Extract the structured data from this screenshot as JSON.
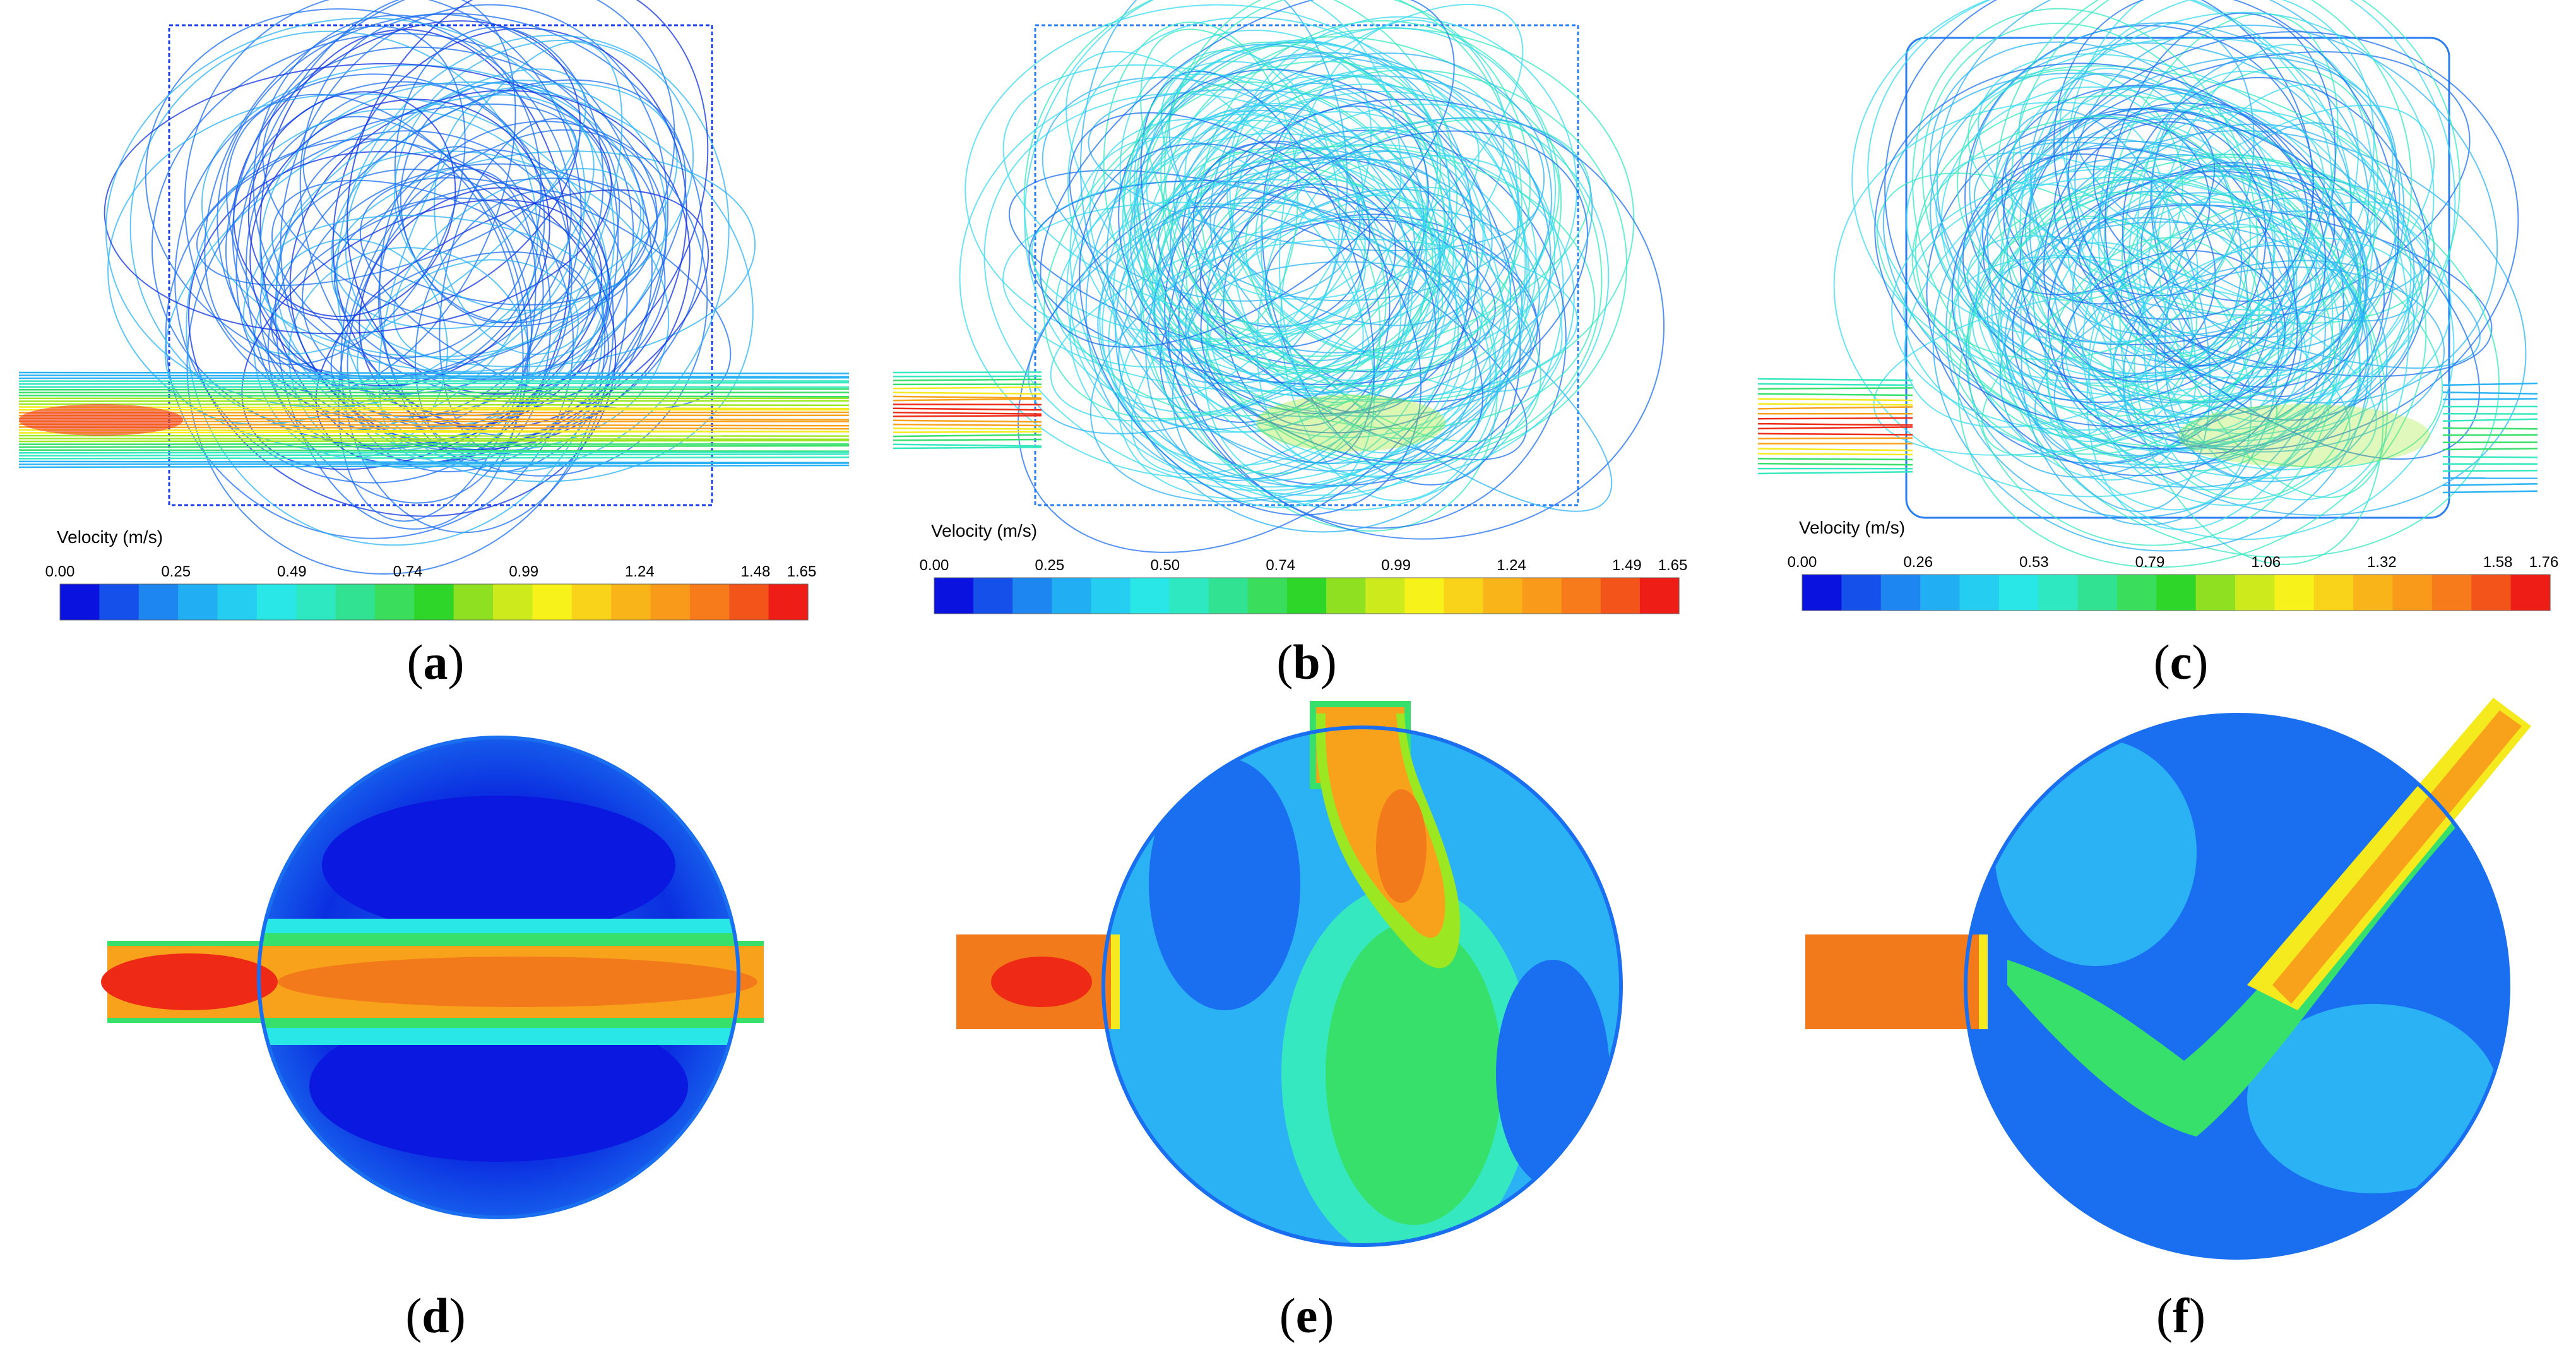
{
  "figure": {
    "panels": [
      {
        "id": "a",
        "label_open": "(",
        "label_letter": "a",
        "label_close": ")",
        "legend_title": "Velocity (m/s)",
        "legend_ticks": [
          "0.00",
          "0.25",
          "0.49",
          "0.74",
          "0.99",
          "1.24",
          "1.48",
          "1.65"
        ]
      },
      {
        "id": "b",
        "label_open": "(",
        "label_letter": "b",
        "label_close": ")",
        "legend_title": "Velocity (m/s)",
        "legend_ticks": [
          "0.00",
          "0.25",
          "0.50",
          "0.74",
          "0.99",
          "1.24",
          "1.49",
          "1.65"
        ]
      },
      {
        "id": "c",
        "label_open": "(",
        "label_letter": "c",
        "label_close": ")",
        "legend_title": "Velocity (m/s)",
        "legend_ticks": [
          "0.00",
          "0.26",
          "0.53",
          "0.79",
          "1.06",
          "1.32",
          "1.58",
          "1.76"
        ]
      },
      {
        "id": "d",
        "label_open": "(",
        "label_letter": "d",
        "label_close": ")"
      },
      {
        "id": "e",
        "label_open": "(",
        "label_letter": "e",
        "label_close": ")"
      },
      {
        "id": "f",
        "label_open": "(",
        "label_letter": "f",
        "label_close": ")"
      }
    ],
    "colorbar_colors": [
      "#0a12e0",
      "#1550ea",
      "#1e86f0",
      "#22aef2",
      "#25cdf0",
      "#28e7e6",
      "#2de8c0",
      "#30e292",
      "#3ade5c",
      "#2fd62a",
      "#8fe021",
      "#cdea1c",
      "#f7f21a",
      "#f8d31a",
      "#f9b41a",
      "#f99a1b",
      "#f77a1b",
      "#f2541a",
      "#ee1e16"
    ],
    "flow_colors": {
      "deep_blue": "#0b2fe0",
      "blue": "#1a6ef0",
      "light_blue": "#2bb2f5",
      "cyan": "#38d9f0",
      "aqua": "#36e8c0",
      "green": "#36e06a",
      "lime": "#9be822",
      "yellow": "#f4ea1d",
      "orange": "#f8a21c",
      "dark_orange": "#f37a1b",
      "red": "#ee2a16"
    }
  }
}
